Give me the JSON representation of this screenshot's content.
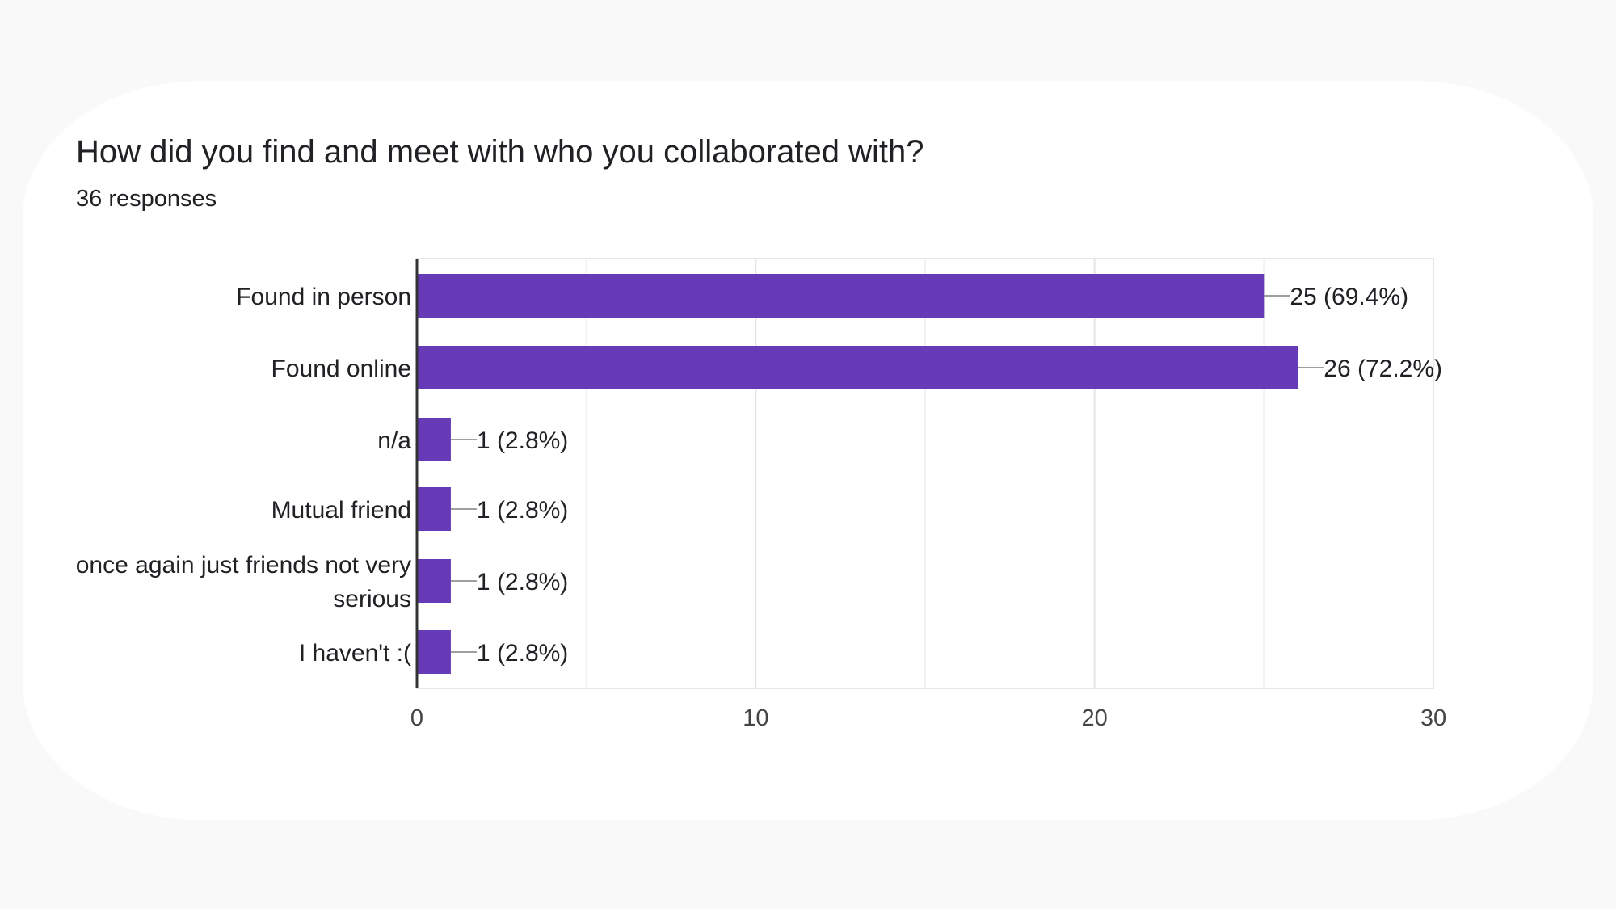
{
  "question": "How did you find and meet with who you collaborated with?",
  "responses": "36 responses",
  "colors": {
    "bar": "#673ab7",
    "grid": "#e6e6e6",
    "axis": "#333333",
    "text": "#202124",
    "leader": "#9e9e9e"
  },
  "chart_data": {
    "type": "bar",
    "orientation": "horizontal",
    "title": "How did you find and meet with who you collaborated with?",
    "subtitle": "36 responses",
    "xlabel": "",
    "ylabel": "",
    "categories": [
      [
        "Found in person"
      ],
      [
        "Found online"
      ],
      [
        "n/a"
      ],
      [
        "Mutual friend"
      ],
      [
        "once again just friends not very",
        "serious"
      ],
      [
        "I haven't :("
      ]
    ],
    "values": [
      25,
      26,
      1,
      1,
      1,
      1
    ],
    "data_labels": [
      "25 (69.4%)",
      "26 (72.2%)",
      "1 (2.8%)",
      "1 (2.8%)",
      "1 (2.8%)",
      "1 (2.8%)"
    ],
    "xlim": [
      0,
      30
    ],
    "xticks": [
      0,
      10,
      20,
      30
    ],
    "minor_gridlines": [
      5,
      15,
      25
    ],
    "grid": true,
    "legend": "none"
  }
}
